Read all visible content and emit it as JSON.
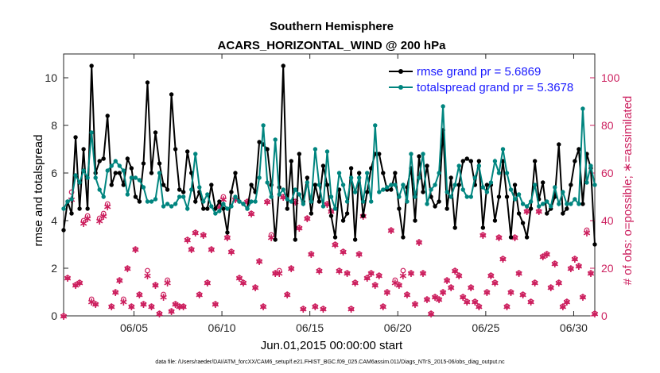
{
  "chart_data": {
    "type": "line",
    "title": "Southern Hemisphere",
    "subtitle": "ACARS_HORIZONTAL_WIND @ 200 hPa",
    "xlabel": "Jun.01,2015 00:00:00 start",
    "ylabel_left": "rmse and totalspread",
    "ylabel_right": "# of obs: o=possible; ∗=assimilated",
    "footnote": "data file: /Users/raeder/DAI/ATM_forcXX/CAM6_setup/f.e21.FHIST_BGC.f09_025.CAM6assim.011/Diags_NTrS_2015-06/obs_diag_output.nc",
    "xlim": [
      1,
      31.2
    ],
    "ylim_left": [
      0,
      11
    ],
    "ylim_right": [
      0,
      110
    ],
    "x_ticks": [
      5,
      10,
      15,
      20,
      25,
      30
    ],
    "x_tick_labels": [
      "06/05",
      "06/10",
      "06/15",
      "06/20",
      "06/25",
      "06/30"
    ],
    "y_ticks_left": [
      0,
      2,
      4,
      6,
      8,
      10
    ],
    "y_ticks_right": [
      0,
      20,
      40,
      60,
      80,
      100
    ],
    "colors": {
      "rmse": "#000000",
      "spread": "#00857f",
      "obs": "#cc1f5e",
      "legend_text": "#1a1aff"
    },
    "legend": [
      "rmse grand pr = 5.6869",
      "totalspread grand pr = 5.3678"
    ],
    "series": [
      {
        "name": "rmse",
        "axis": "left",
        "color": "#000000",
        "values": [
          3.6,
          4.8,
          4.3,
          7.5,
          4.5,
          7.0,
          4.5,
          10.5,
          6.0,
          6.5,
          6.6,
          8.4,
          5.5,
          6.0,
          6.0,
          5.5,
          6.6,
          6.2,
          5.0,
          4.8,
          6.4,
          9.8,
          6.0,
          7.7,
          6.4,
          5.5,
          5.3,
          9.3,
          7.0,
          5.3,
          5.2,
          6.9,
          6.0,
          4.8,
          5.2,
          4.5,
          4.5,
          5.5,
          4.5,
          4.8,
          4.5,
          3.5,
          5.2,
          6.0,
          4.8,
          4.7,
          4.5,
          5.5,
          5.2,
          7.3,
          7.2,
          7.0,
          5.5,
          3.2,
          5.4,
          10.5,
          4.5,
          6.5,
          3.2,
          6.8,
          4.8,
          5.8,
          4.3,
          5.5,
          4.8,
          6.3,
          5.5,
          4.2,
          3.3,
          5.3,
          4.0,
          4.3,
          6.2,
          3.2,
          6.0,
          4.2,
          5.2,
          6.2,
          6.8,
          6.8,
          6.0,
          5.3,
          5.3,
          6.0,
          4.5,
          3.3,
          5.4,
          6.2,
          4.0,
          6.7,
          5.2,
          6.3,
          5.0,
          4.6,
          4.8,
          7.8,
          4.5,
          5.8,
          3.7,
          5.5,
          6.5,
          6.6,
          6.5,
          5.5,
          6.5,
          3.7,
          5.5,
          5.5,
          4.0,
          5.0,
          6.5,
          5.0,
          3.3,
          5.5,
          4.3,
          3.9,
          3.3,
          4.5,
          6.5,
          4.9,
          5.6,
          4.3,
          4.5,
          5.0,
          7.2,
          4.3,
          4.5,
          5.5,
          6.5,
          7.0,
          4.7,
          6.8,
          6.2,
          3.0
        ]
      },
      {
        "name": "totalspread",
        "axis": "left",
        "color": "#00857f",
        "values": [
          4.5,
          4.8,
          4.9,
          5.9,
          5.6,
          6.1,
          5.8,
          7.7,
          5.8,
          5.3,
          5.0,
          6.1,
          6.3,
          6.5,
          6.3,
          6.1,
          5.1,
          5.8,
          5.8,
          5.7,
          5.4,
          4.8,
          4.8,
          4.9,
          6.0,
          4.6,
          4.7,
          4.6,
          4.7,
          5.0,
          5.0,
          4.5,
          5.3,
          6.8,
          5.4,
          4.8,
          5.1,
          4.6,
          4.3,
          4.4,
          4.7,
          4.5,
          4.6,
          5.0,
          4.8,
          4.7,
          4.5,
          4.8,
          4.8,
          5.8,
          8.0,
          5.6,
          5.0,
          7.4,
          5.1,
          5.3,
          4.9,
          4.8,
          5.3,
          5.1,
          4.7,
          5.6,
          4.8,
          7.0,
          5.5,
          4.6,
          6.9,
          5.0,
          4.5,
          6.0,
          5.5,
          4.8,
          5.8,
          5.2,
          5.8,
          4.8,
          6.0,
          4.8,
          8.0,
          5.2,
          5.3,
          5.4,
          5.5,
          5.5,
          5.0,
          5.5,
          4.8,
          6.8,
          5.0,
          5.8,
          6.8,
          4.7,
          5.3,
          5.5,
          6.0,
          8.8,
          5.2,
          5.0,
          5.5,
          6.3,
          5.3,
          5.0,
          5.0,
          5.8,
          6.3,
          5.4,
          5.2,
          5.6,
          6.5,
          6.0,
          7.0,
          6.0,
          5.3,
          4.9,
          5.1,
          4.7,
          4.6,
          4.8,
          5.5,
          4.6,
          4.7,
          4.8,
          4.6,
          5.4,
          4.7,
          5.2,
          4.7,
          4.7,
          4.9,
          4.7,
          8.7,
          5.6,
          6.3,
          5.5
        ]
      },
      {
        "name": "possible",
        "axis": "right",
        "color": "#cc1f5e",
        "marker": "o",
        "values": [
          0,
          16,
          52,
          13,
          14,
          40,
          42,
          7,
          5,
          41,
          43,
          47,
          4,
          10,
          15,
          7,
          20,
          4,
          28,
          9,
          5,
          19,
          4,
          13,
          1,
          9,
          15,
          2,
          5,
          4,
          4,
          32,
          28,
          35,
          9,
          34,
          14,
          28,
          5,
          46,
          50,
          33,
          27,
          49,
          16,
          14,
          48,
          43,
          12,
          23,
          4,
          48,
          34,
          18,
          19,
          50,
          9,
          20,
          48,
          37,
          3,
          41,
          26,
          4,
          19,
          3,
          47,
          44,
          30,
          19,
          27,
          18,
          3,
          14,
          26,
          42,
          16,
          18,
          13,
          17,
          4,
          10,
          36,
          15,
          13,
          19,
          9,
          18,
          5,
          31,
          18,
          7,
          1,
          8,
          7,
          10,
          15,
          12,
          19,
          17,
          8,
          6,
          12,
          6,
          4,
          34,
          10,
          17,
          14,
          33,
          24,
          4,
          10,
          33,
          18,
          9,
          44,
          6,
          14,
          44,
          25,
          26,
          12,
          22,
          14,
          4,
          6,
          20,
          24,
          21,
          8,
          36,
          18,
          1
        ]
      },
      {
        "name": "assimilated",
        "axis": "right",
        "color": "#cc1f5e",
        "marker": "*",
        "values": [
          0,
          16,
          49,
          13,
          14,
          39,
          41,
          6,
          5,
          40,
          42,
          46,
          4,
          10,
          15,
          6,
          20,
          4,
          28,
          9,
          5,
          17,
          4,
          13,
          1,
          8,
          14,
          2,
          5,
          4,
          4,
          32,
          28,
          35,
          9,
          34,
          14,
          28,
          5,
          46,
          49,
          33,
          27,
          49,
          16,
          14,
          48,
          43,
          12,
          23,
          4,
          48,
          33,
          18,
          18,
          50,
          9,
          20,
          48,
          37,
          3,
          41,
          26,
          4,
          19,
          3,
          47,
          44,
          30,
          19,
          27,
          18,
          3,
          14,
          26,
          42,
          16,
          18,
          13,
          17,
          4,
          10,
          36,
          14,
          13,
          17,
          9,
          18,
          5,
          31,
          18,
          7,
          1,
          8,
          7,
          10,
          15,
          12,
          19,
          17,
          8,
          6,
          12,
          6,
          4,
          34,
          10,
          17,
          14,
          33,
          24,
          4,
          10,
          33,
          18,
          9,
          44,
          6,
          14,
          44,
          25,
          26,
          12,
          22,
          14,
          4,
          6,
          20,
          24,
          21,
          8,
          35,
          18,
          1
        ]
      }
    ]
  }
}
